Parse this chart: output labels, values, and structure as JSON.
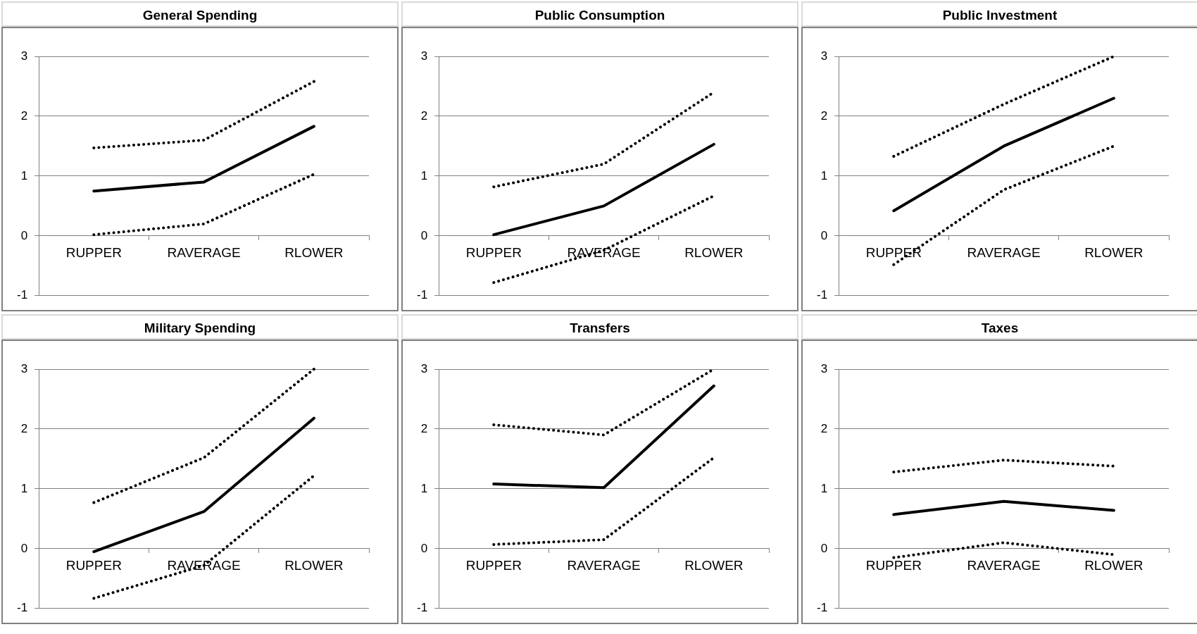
{
  "chart_data": [
    {
      "type": "line",
      "title": "General Spending",
      "categories": [
        "RUPPER",
        "RAVERAGE",
        "RLOWER"
      ],
      "ylim": [
        -1,
        3
      ],
      "yticks": [
        -1,
        0,
        1,
        2,
        3
      ],
      "grid": "y",
      "marker": "none",
      "series": [
        {
          "color": "#000000",
          "line_style": "dotted",
          "values": [
            1.47,
            1.6,
            2.58
          ]
        },
        {
          "color": "#000000",
          "line_style": "solid",
          "values": [
            0.75,
            0.9,
            1.83
          ]
        },
        {
          "color": "#000000",
          "line_style": "dotted",
          "values": [
            0.02,
            0.2,
            1.03
          ]
        }
      ]
    },
    {
      "type": "line",
      "title": "Public Consumption",
      "categories": [
        "RUPPER",
        "RAVERAGE",
        "RLOWER"
      ],
      "ylim": [
        -1,
        3
      ],
      "yticks": [
        -1,
        0,
        1,
        2,
        3
      ],
      "grid": "y",
      "marker": "none",
      "series": [
        {
          "color": "#000000",
          "line_style": "dotted",
          "values": [
            0.82,
            1.2,
            2.4
          ]
        },
        {
          "color": "#000000",
          "line_style": "solid",
          "values": [
            0.02,
            0.5,
            1.53
          ]
        },
        {
          "color": "#000000",
          "line_style": "dotted",
          "values": [
            -0.78,
            -0.24,
            0.67
          ]
        }
      ]
    },
    {
      "type": "line",
      "title": "Public Investment",
      "categories": [
        "RUPPER",
        "RAVERAGE",
        "RLOWER"
      ],
      "ylim": [
        -1,
        3
      ],
      "yticks": [
        -1,
        0,
        1,
        2,
        3
      ],
      "grid": "y",
      "marker": "none",
      "series": [
        {
          "color": "#000000",
          "line_style": "dotted",
          "values": [
            1.33,
            2.2,
            3.0
          ]
        },
        {
          "color": "#000000",
          "line_style": "solid",
          "values": [
            0.42,
            1.5,
            2.3
          ]
        },
        {
          "color": "#000000",
          "line_style": "dotted",
          "values": [
            -0.48,
            0.77,
            1.5
          ]
        }
      ]
    },
    {
      "type": "line",
      "title": "Military Spending",
      "categories": [
        "RUPPER",
        "RAVERAGE",
        "RLOWER"
      ],
      "ylim": [
        -1,
        3
      ],
      "yticks": [
        -1,
        0,
        1,
        2,
        3
      ],
      "grid": "y",
      "marker": "none",
      "series": [
        {
          "color": "#000000",
          "line_style": "dotted",
          "values": [
            0.77,
            1.52,
            3.0
          ]
        },
        {
          "color": "#000000",
          "line_style": "solid",
          "values": [
            -0.05,
            0.62,
            2.18
          ]
        },
        {
          "color": "#000000",
          "line_style": "dotted",
          "values": [
            -0.83,
            -0.28,
            1.22
          ]
        }
      ]
    },
    {
      "type": "line",
      "title": "Transfers",
      "categories": [
        "RUPPER",
        "RAVERAGE",
        "RLOWER"
      ],
      "ylim": [
        -1,
        3
      ],
      "yticks": [
        -1,
        0,
        1,
        2,
        3
      ],
      "grid": "y",
      "marker": "none",
      "series": [
        {
          "color": "#000000",
          "line_style": "dotted",
          "values": [
            2.07,
            1.9,
            3.0
          ]
        },
        {
          "color": "#000000",
          "line_style": "solid",
          "values": [
            1.08,
            1.02,
            2.72
          ]
        },
        {
          "color": "#000000",
          "line_style": "dotted",
          "values": [
            0.07,
            0.15,
            1.52
          ]
        }
      ]
    },
    {
      "type": "line",
      "title": "Taxes",
      "categories": [
        "RUPPER",
        "RAVERAGE",
        "RLOWER"
      ],
      "ylim": [
        -1,
        3
      ],
      "yticks": [
        -1,
        0,
        1,
        2,
        3
      ],
      "grid": "y",
      "marker": "none",
      "series": [
        {
          "color": "#000000",
          "line_style": "dotted",
          "values": [
            1.28,
            1.48,
            1.38
          ]
        },
        {
          "color": "#000000",
          "line_style": "solid",
          "values": [
            0.57,
            0.79,
            0.64
          ]
        },
        {
          "color": "#000000",
          "line_style": "dotted",
          "values": [
            -0.15,
            0.1,
            -0.1
          ]
        }
      ]
    }
  ]
}
